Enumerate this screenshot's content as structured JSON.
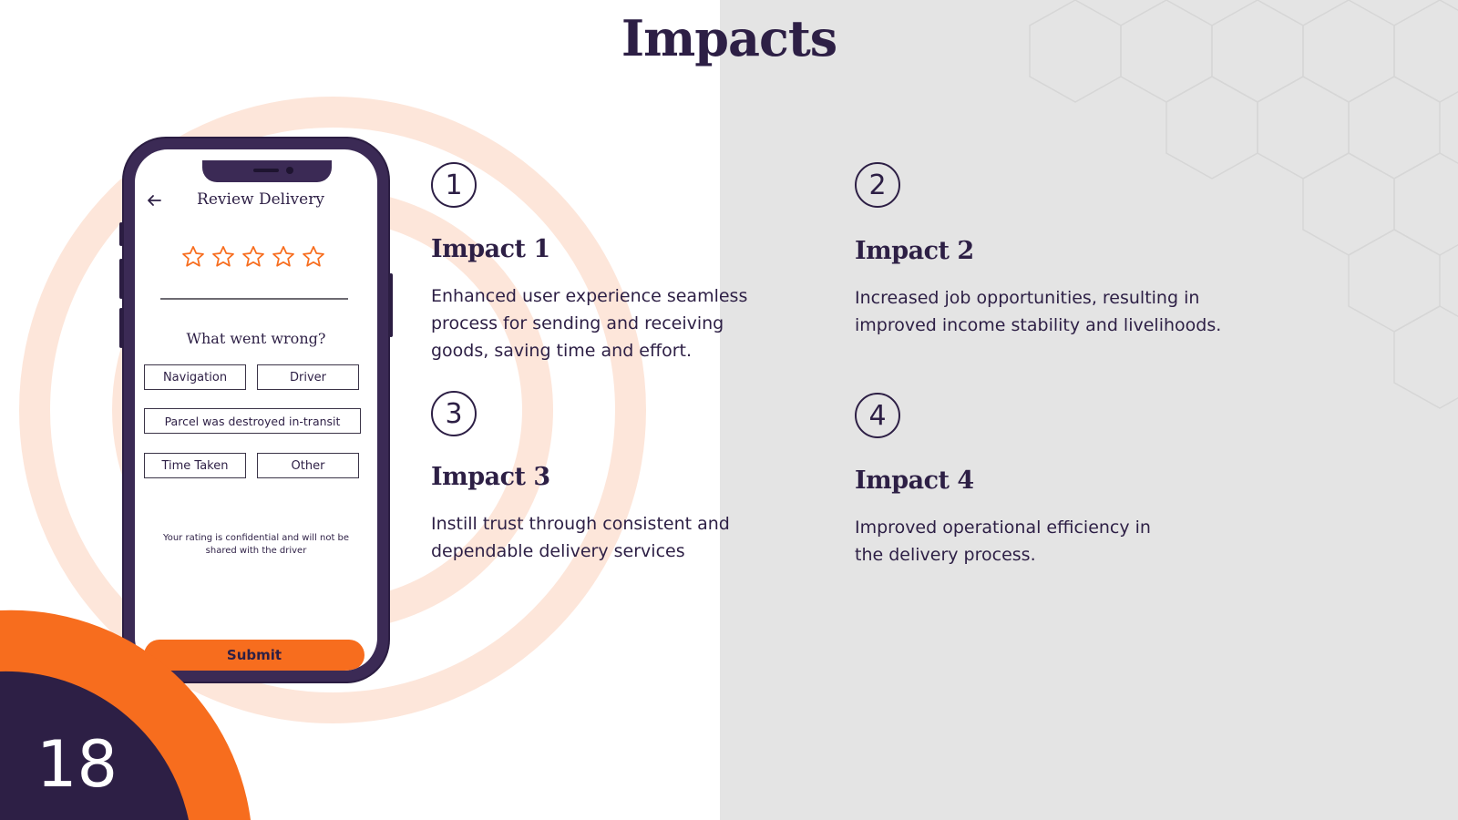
{
  "slide": {
    "title": "Impacts",
    "page_number": "18"
  },
  "colors": {
    "accent": "#f76d1e",
    "dark": "#2d1f45",
    "ring": "#fde6da",
    "panel": "#e4e4e4"
  },
  "phone": {
    "screen_title": "Review Delivery",
    "back_icon": "arrow-left-icon",
    "star_icon": "star-outline-icon",
    "star_count": 5,
    "question": "What went wrong?",
    "options": {
      "navigation": "Navigation",
      "driver": "Driver",
      "parcel": "Parcel was destroyed in-transit",
      "time_taken": "Time Taken",
      "other": "Other"
    },
    "note": "Your rating is confidential and will not be shared with the driver",
    "submit_label": "Submit"
  },
  "impacts": [
    {
      "number": "1",
      "heading": "Impact 1",
      "text": "Enhanced user experience  seamless process for sending and receiving goods, saving time and effort."
    },
    {
      "number": "2",
      "heading": "Impact 2",
      "text": "Increased  job opportunities, resulting in improved income stability and livelihoods."
    },
    {
      "number": "3",
      "heading": "Impact 3",
      "text": "Instill trust through consistent and dependable delivery services"
    },
    {
      "number": "4",
      "heading": "Impact 4",
      "text": "Improved operational efficiency in the delivery process."
    }
  ]
}
